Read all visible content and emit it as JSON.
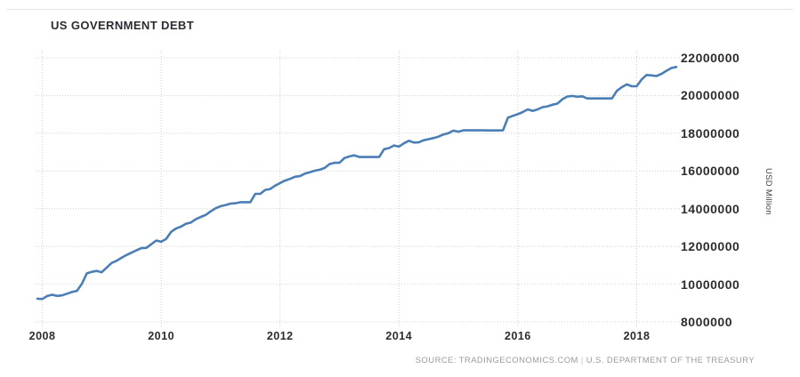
{
  "header": {
    "title": "US GOVERNMENT DEBT"
  },
  "source": {
    "prefix": "SOURCE: TRADINGECONOMICS.COM",
    "separator": "|",
    "name": "U.S. DEPARTMENT OF THE TREASURY"
  },
  "colors": {
    "line": "#4a7eb5",
    "grid": "#cfcfcf",
    "tick_text": "#2d2d2d",
    "title_text": "#2b2b31",
    "source_text": "#9b9b9b",
    "top_border": "#e3e3e3"
  },
  "chart_data": {
    "type": "line",
    "title": "US GOVERNMENT DEBT",
    "xlabel": "",
    "ylabel": "USD Million",
    "grid": "dotted",
    "legend": "none",
    "x_ticks": [
      2008,
      2010,
      2012,
      2014,
      2016,
      2018
    ],
    "y_ticks": [
      8000000,
      10000000,
      12000000,
      14000000,
      16000000,
      18000000,
      20000000,
      22000000
    ],
    "xlim": [
      2007.917,
      2018.75
    ],
    "ylim": [
      8000000,
      22000000
    ],
    "series": [
      {
        "name": "US Government Debt",
        "unit": "USD Million",
        "interval": "monthly",
        "start": "2007-12",
        "end": "2018-09",
        "values": [
          9229000,
          9211000,
          9373000,
          9438000,
          9378000,
          9403000,
          9492000,
          9585000,
          9646000,
          10025000,
          10572000,
          10656000,
          10700000,
          10632000,
          10878000,
          11127000,
          11239000,
          11399000,
          11545000,
          11669000,
          11793000,
          11910000,
          11921000,
          12115000,
          12311000,
          12245000,
          12395000,
          12773000,
          12949000,
          13050000,
          13203000,
          13263000,
          13450000,
          13562000,
          13669000,
          13861000,
          14025000,
          14131000,
          14195000,
          14270000,
          14288000,
          14345000,
          14343000,
          14343000,
          14790000,
          14790000,
          14994000,
          15041000,
          15222000,
          15356000,
          15489000,
          15582000,
          15692000,
          15725000,
          15856000,
          15933000,
          16015000,
          16066000,
          16159000,
          16369000,
          16433000,
          16435000,
          16687000,
          16771000,
          16829000,
          16739000,
          16738000,
          16738000,
          16738000,
          16738000,
          17156000,
          17217000,
          17352000,
          17293000,
          17463000,
          17601000,
          17508000,
          17517000,
          17632000,
          17687000,
          17749000,
          17824000,
          17937000,
          18005000,
          18141000,
          18082000,
          18155000,
          18152000,
          18152000,
          18153000,
          18152000,
          18151000,
          18151000,
          18151000,
          18153000,
          18827000,
          18922000,
          19012000,
          19125000,
          19264000,
          19187000,
          19265000,
          19382000,
          19427000,
          19510000,
          19573000,
          19805000,
          19948000,
          19977000,
          19937000,
          19959000,
          19846000,
          19846000,
          19846000,
          19845000,
          19845000,
          19845000,
          20245000,
          20443000,
          20591000,
          20493000,
          20494000,
          20856000,
          21090000,
          21068000,
          21032000,
          21145000,
          21313000,
          21459000,
          21516000
        ]
      }
    ]
  }
}
